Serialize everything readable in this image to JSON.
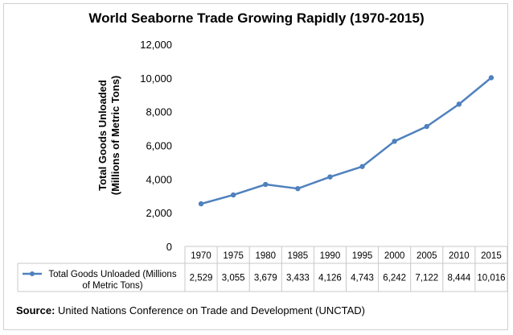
{
  "title": "World Seaborne Trade Growing Rapidly (1970-2015)",
  "ylabel_line1": "Total Goods Unloaded",
  "ylabel_line2": "(Millions of Metric Tons)",
  "source_label": "Source:",
  "source_text": " United Nations Conference on Trade and Development (UNCTAD)",
  "chart_data": {
    "type": "line",
    "title": "World Seaborne Trade Growing Rapidly (1970-2015)",
    "xlabel": "",
    "ylabel": "Total Goods Unloaded (Millions of Metric Tons)",
    "categories": [
      "1970",
      "1975",
      "1980",
      "1985",
      "1990",
      "1995",
      "2000",
      "2005",
      "2010",
      "2015"
    ],
    "series": [
      {
        "name": "Total Goods Unloaded (Millions of Metric Tons)",
        "name_lines": [
          "Total Goods Unloaded (Millions",
          "of Metric Tons)"
        ],
        "values": [
          2529,
          3055,
          3679,
          3433,
          4126,
          4743,
          6242,
          7122,
          8444,
          10016
        ],
        "value_labels": [
          "2,529",
          "3,055",
          "3,679",
          "3,433",
          "4,126",
          "4,743",
          "6,242",
          "7,122",
          "8,444",
          "10,016"
        ],
        "color": "#4f81bd"
      }
    ],
    "ylim": [
      0,
      12000
    ],
    "yticks": [
      0,
      2000,
      4000,
      6000,
      8000,
      10000,
      12000
    ],
    "ytick_labels": [
      "0",
      "2,000",
      "4,000",
      "6,000",
      "8,000",
      "10,000",
      "12,000"
    ],
    "grid": false,
    "legend": "data-table",
    "data_table": true
  }
}
